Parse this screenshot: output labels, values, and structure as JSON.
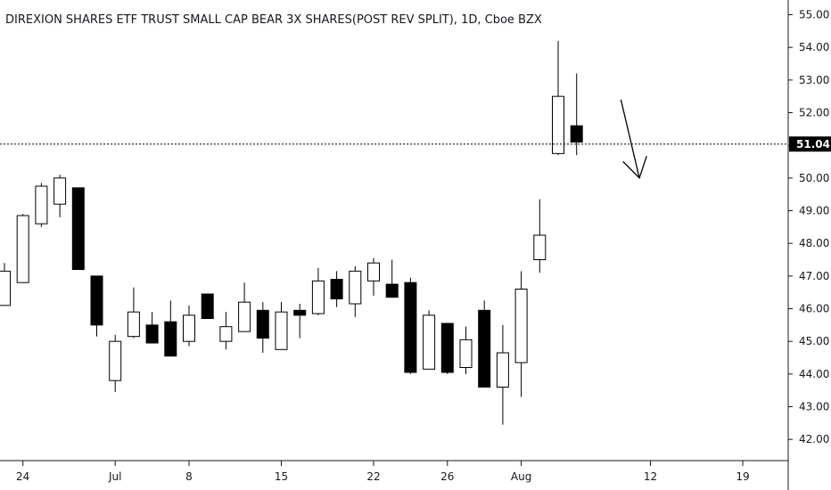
{
  "chart_data": {
    "type": "candlestick",
    "title": "DIREXION SHARES ETF TRUST SMALL CAP BEAR 3X SHARES(POST REV SPLIT), 1D, Cboe BZX",
    "ylim": [
      41.35,
      55.45
    ],
    "y_ticks": [
      "42.00",
      "43.00",
      "44.00",
      "45.00",
      "46.00",
      "47.00",
      "48.00",
      "49.00",
      "50.00",
      "51.00",
      "52.00",
      "53.00",
      "54.00",
      "55.00"
    ],
    "x_ticks": [
      {
        "label": "24",
        "index": 1
      },
      {
        "label": "Jul",
        "index": 6
      },
      {
        "label": "8",
        "index": 10
      },
      {
        "label": "15",
        "index": 15
      },
      {
        "label": "22",
        "index": 20
      },
      {
        "label": "26",
        "index": 24
      },
      {
        "label": "Aug",
        "index": 28
      },
      {
        "label": "12",
        "index": 35
      },
      {
        "label": "19",
        "index": 40
      }
    ],
    "last_price": "51.04",
    "last_price_value": 51.04,
    "candles": [
      {
        "open": 46.1,
        "high": 47.4,
        "low": 46.1,
        "close": 47.15
      },
      {
        "open": 46.8,
        "high": 48.9,
        "low": 46.8,
        "close": 48.85
      },
      {
        "open": 48.6,
        "high": 49.85,
        "low": 48.5,
        "close": 49.75
      },
      {
        "open": 49.2,
        "high": 50.1,
        "low": 48.8,
        "close": 50.0
      },
      {
        "open": 49.7,
        "high": 49.7,
        "low": 47.2,
        "close": 47.2
      },
      {
        "open": 47.0,
        "high": 47.0,
        "low": 45.15,
        "close": 45.5
      },
      {
        "open": 43.8,
        "high": 45.2,
        "low": 43.45,
        "close": 45.0
      },
      {
        "open": 45.15,
        "high": 46.65,
        "low": 45.1,
        "close": 45.9
      },
      {
        "open": 45.5,
        "high": 45.9,
        "low": 44.95,
        "close": 44.95
      },
      {
        "open": 45.6,
        "high": 46.25,
        "low": 44.55,
        "close": 44.55
      },
      {
        "open": 45.0,
        "high": 46.1,
        "low": 44.85,
        "close": 45.8
      },
      {
        "open": 46.45,
        "high": 46.45,
        "low": 45.7,
        "close": 45.7
      },
      {
        "open": 45.0,
        "high": 45.9,
        "low": 44.75,
        "close": 45.45
      },
      {
        "open": 45.3,
        "high": 46.8,
        "low": 45.3,
        "close": 46.2
      },
      {
        "open": 45.95,
        "high": 46.2,
        "low": 44.65,
        "close": 45.1
      },
      {
        "open": 44.75,
        "high": 46.2,
        "low": 44.75,
        "close": 45.9
      },
      {
        "open": 45.95,
        "high": 46.15,
        "low": 45.1,
        "close": 45.8
      },
      {
        "open": 45.85,
        "high": 47.25,
        "low": 45.8,
        "close": 46.85
      },
      {
        "open": 46.9,
        "high": 47.15,
        "low": 46.05,
        "close": 46.3
      },
      {
        "open": 46.15,
        "high": 47.3,
        "low": 45.75,
        "close": 47.15
      },
      {
        "open": 46.85,
        "high": 47.55,
        "low": 46.4,
        "close": 47.4
      },
      {
        "open": 46.75,
        "high": 47.5,
        "low": 46.35,
        "close": 46.35
      },
      {
        "open": 46.8,
        "high": 46.95,
        "low": 44.0,
        "close": 44.05
      },
      {
        "open": 44.15,
        "high": 45.95,
        "low": 44.15,
        "close": 45.8
      },
      {
        "open": 45.55,
        "high": 45.55,
        "low": 44.0,
        "close": 44.05
      },
      {
        "open": 44.2,
        "high": 45.45,
        "low": 44.0,
        "close": 45.05
      },
      {
        "open": 45.95,
        "high": 46.25,
        "low": 43.6,
        "close": 43.6
      },
      {
        "open": 43.6,
        "high": 45.5,
        "low": 42.45,
        "close": 44.65
      },
      {
        "open": 44.35,
        "high": 47.15,
        "low": 43.3,
        "close": 46.6
      },
      {
        "open": 47.5,
        "high": 49.35,
        "low": 47.1,
        "close": 48.25
      },
      {
        "open": 50.75,
        "high": 54.2,
        "low": 50.7,
        "close": 52.5
      },
      {
        "open": 51.6,
        "high": 53.2,
        "low": 50.7,
        "close": 51.1
      }
    ],
    "arrow_annotation": {
      "from_index": 33.4,
      "from_value": 52.4,
      "to_index": 34.4,
      "to_value": 50.0
    },
    "colors": {
      "candle_outline": "#000000",
      "bear_fill": "#000000",
      "bull_fill": "#ffffff",
      "price_line": "#000000",
      "badge_bg": "#000000",
      "axis_line": "#131722",
      "text": "#131722"
    }
  }
}
